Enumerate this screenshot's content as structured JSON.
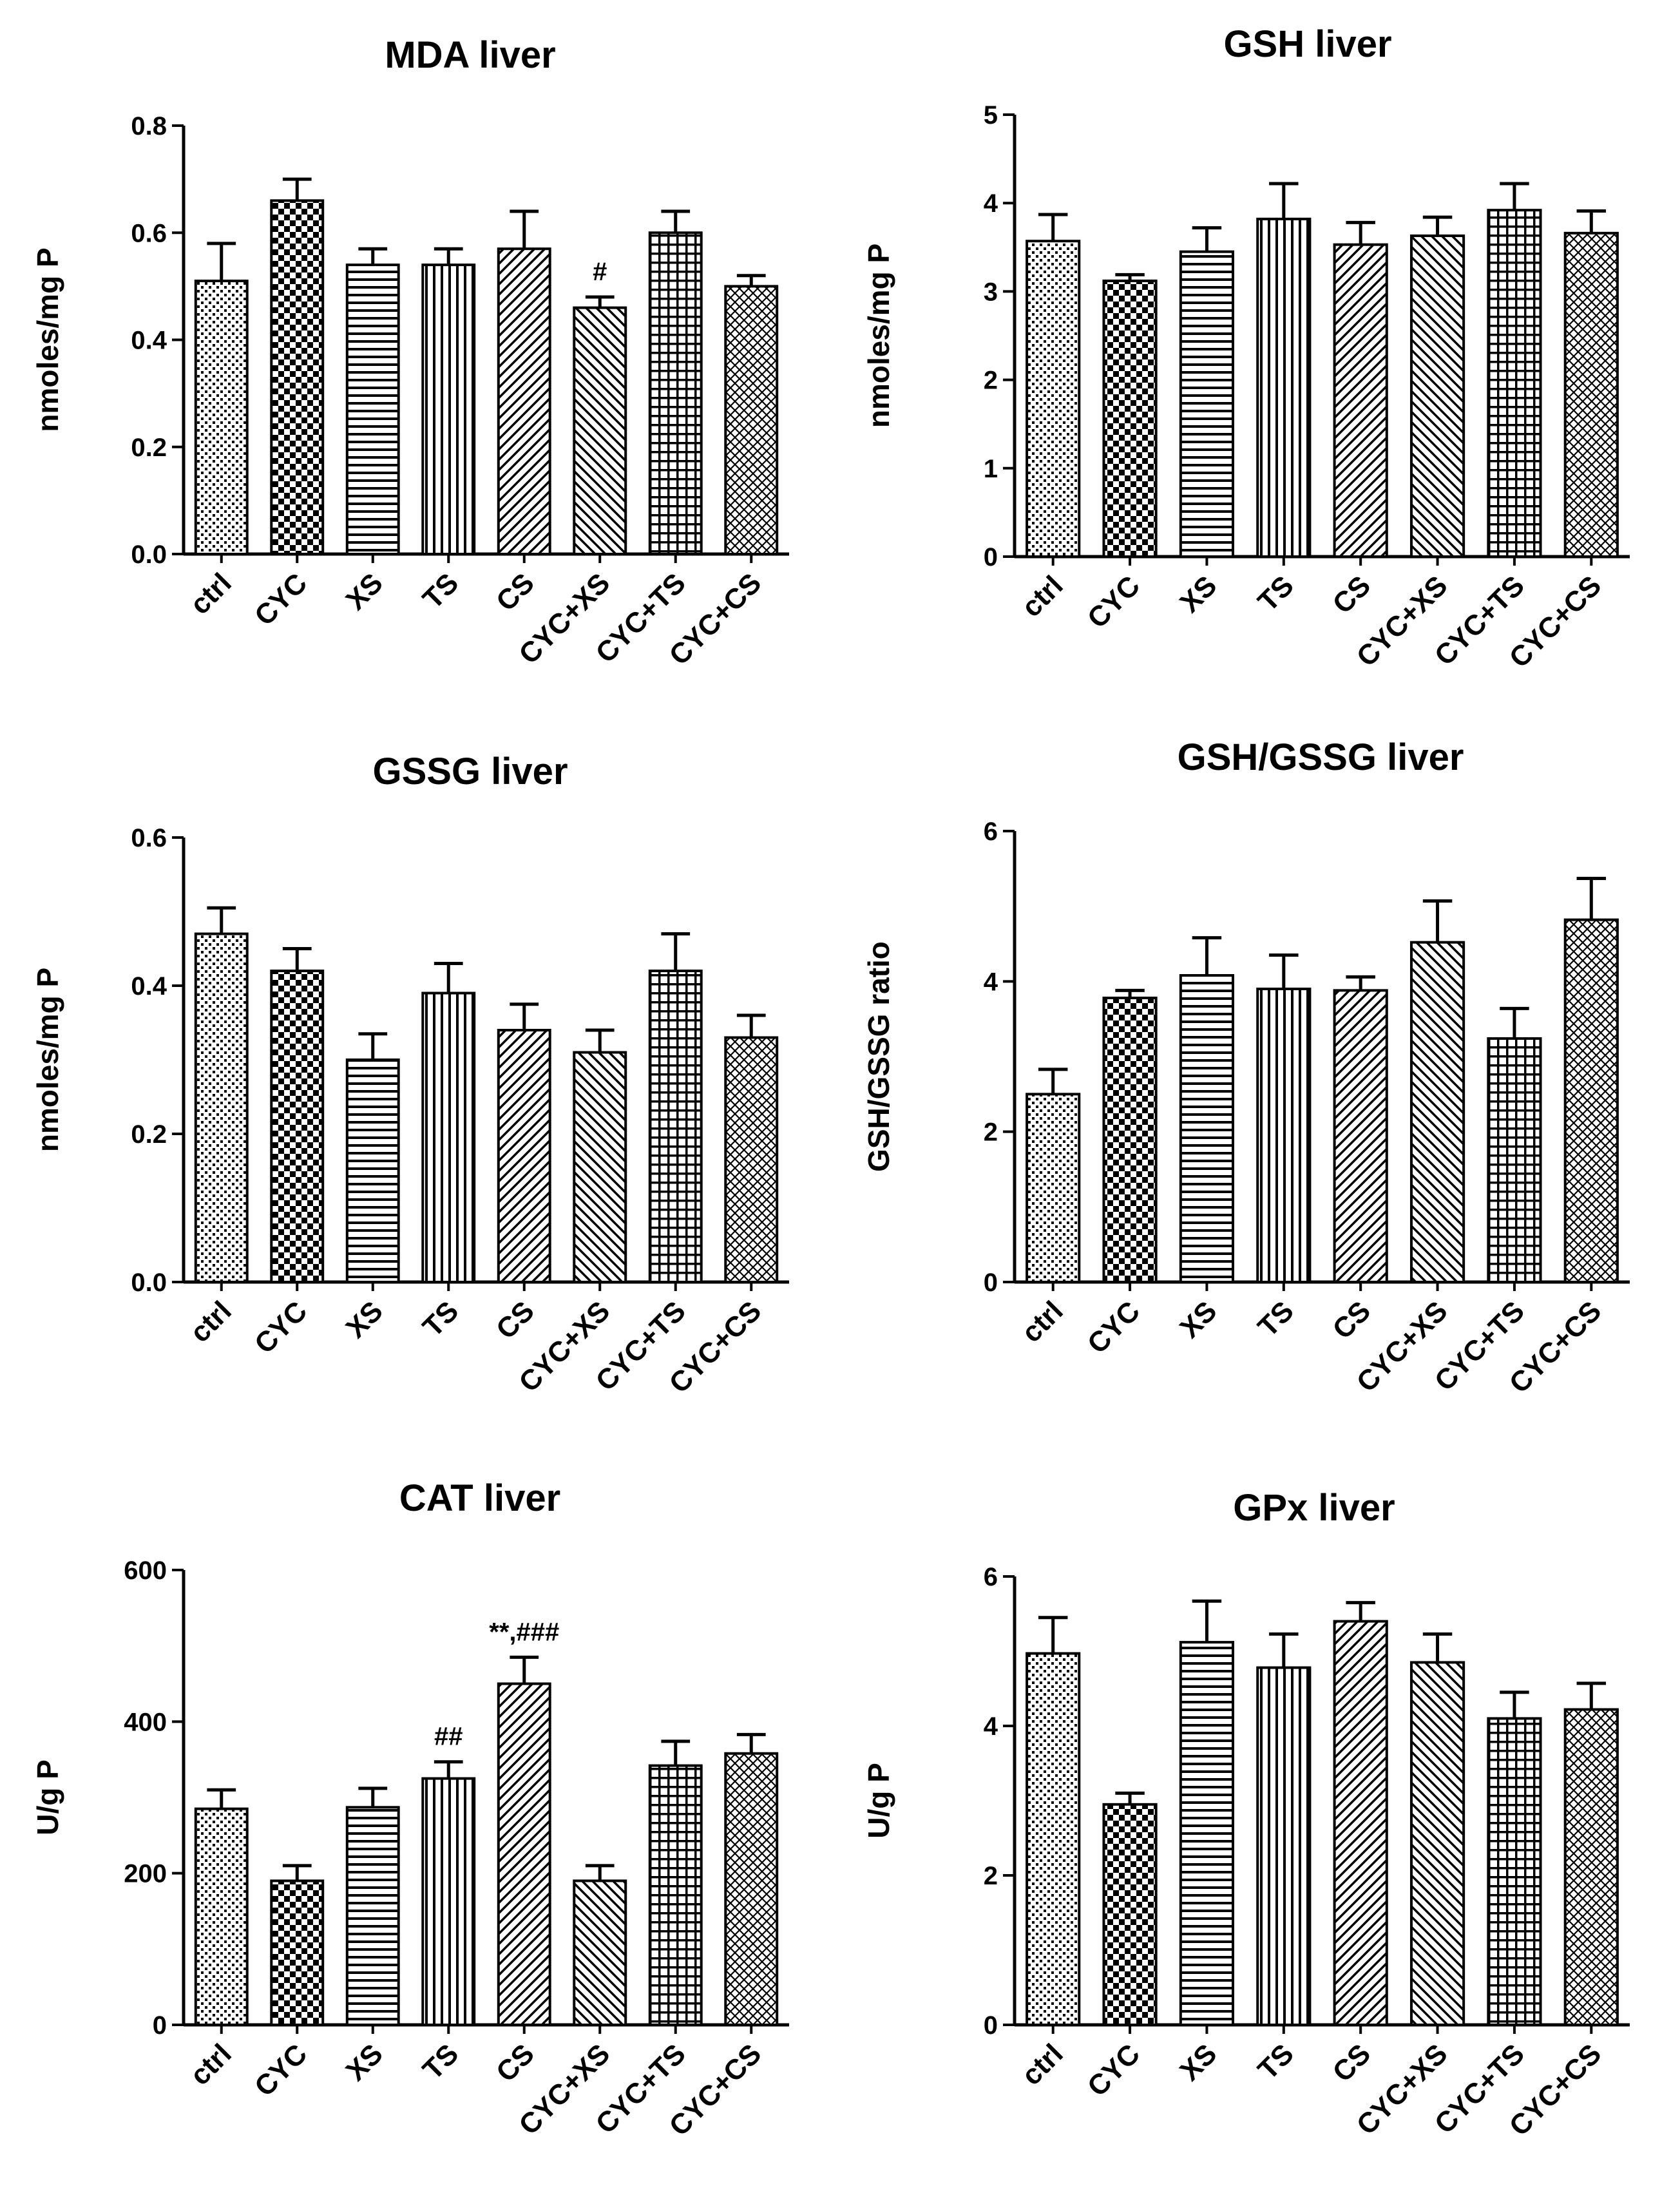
{
  "categories": [
    "ctrl",
    "CYC",
    "XS",
    "TS",
    "CS",
    "CYC+XS",
    "CYC+TS",
    "CYC+CS"
  ],
  "chart_data": [
    {
      "type": "bar",
      "title": "MDA liver",
      "ylabel": "nmoles/mg P",
      "xlabel": "",
      "ylim": [
        0,
        0.8
      ],
      "yticks": [
        "0.0",
        "0.2",
        "0.4",
        "0.6",
        "0.8"
      ],
      "categories": [
        "ctrl",
        "CYC",
        "XS",
        "TS",
        "CS",
        "CYC+XS",
        "CYC+TS",
        "CYC+CS"
      ],
      "values": [
        0.51,
        0.66,
        0.54,
        0.54,
        0.57,
        0.46,
        0.6,
        0.5
      ],
      "errors": [
        0.07,
        0.04,
        0.03,
        0.03,
        0.07,
        0.02,
        0.04,
        0.02
      ],
      "annotations": [
        "",
        "",
        "",
        "",
        "",
        "#",
        "",
        ""
      ]
    },
    {
      "type": "bar",
      "title": "GSH liver",
      "ylabel": "nmoles/mg P",
      "xlabel": "",
      "ylim": [
        0,
        5
      ],
      "yticks": [
        "0",
        "1",
        "2",
        "3",
        "4",
        "5"
      ],
      "categories": [
        "ctrl",
        "CYC",
        "XS",
        "TS",
        "CS",
        "CYC+XS",
        "CYC+TS",
        "CYC+CS"
      ],
      "values": [
        3.57,
        3.12,
        3.45,
        3.82,
        3.53,
        3.63,
        3.92,
        3.66
      ],
      "errors": [
        0.3,
        0.07,
        0.27,
        0.4,
        0.25,
        0.21,
        0.3,
        0.25
      ],
      "annotations": [
        "",
        "",
        "",
        "",
        "",
        "",
        "",
        ""
      ]
    },
    {
      "type": "bar",
      "title": "GSSG liver",
      "ylabel": "nmoles/mg P",
      "xlabel": "",
      "ylim": [
        0,
        0.6
      ],
      "yticks": [
        "0.0",
        "0.2",
        "0.4",
        "0.6"
      ],
      "categories": [
        "ctrl",
        "CYC",
        "XS",
        "TS",
        "CS",
        "CYC+XS",
        "CYC+TS",
        "CYC+CS"
      ],
      "values": [
        0.47,
        0.42,
        0.3,
        0.39,
        0.34,
        0.31,
        0.42,
        0.33
      ],
      "errors": [
        0.035,
        0.03,
        0.035,
        0.04,
        0.035,
        0.03,
        0.05,
        0.03
      ],
      "annotations": [
        "",
        "",
        "",
        "",
        "",
        "",
        "",
        ""
      ]
    },
    {
      "type": "bar",
      "title": "GSH/GSSG liver",
      "ylabel": "GSH/GSSG ratio",
      "xlabel": "",
      "ylim": [
        0,
        6
      ],
      "yticks": [
        "0",
        "2",
        "4",
        "6"
      ],
      "categories": [
        "ctrl",
        "CYC",
        "XS",
        "TS",
        "CS",
        "CYC+XS",
        "CYC+TS",
        "CYC+CS"
      ],
      "values": [
        2.5,
        3.78,
        4.08,
        3.9,
        3.88,
        4.52,
        3.24,
        4.82
      ],
      "errors": [
        0.33,
        0.1,
        0.5,
        0.45,
        0.18,
        0.55,
        0.4,
        0.55
      ],
      "annotations": [
        "",
        "",
        "",
        "",
        "",
        "",
        "",
        ""
      ]
    },
    {
      "type": "bar",
      "title": "CAT liver",
      "ylabel": "U/g P",
      "xlabel": "",
      "ylim": [
        0,
        600
      ],
      "yticks": [
        "0",
        "200",
        "400",
        "600"
      ],
      "categories": [
        "ctrl",
        "CYC",
        "XS",
        "TS",
        "CS",
        "CYC+XS",
        "CYC+TS",
        "CYC+CS"
      ],
      "values": [
        285,
        190,
        287,
        325,
        450,
        190,
        342,
        358
      ],
      "errors": [
        25,
        20,
        25,
        22,
        35,
        20,
        32,
        25
      ],
      "annotations": [
        "",
        "",
        "",
        "##",
        "**,###",
        "",
        "",
        ""
      ]
    },
    {
      "type": "bar",
      "title": "GPx liver",
      "ylabel": "U/g P",
      "xlabel": "",
      "ylim": [
        0,
        6
      ],
      "yticks": [
        "0",
        "2",
        "4",
        "6"
      ],
      "categories": [
        "ctrl",
        "CYC",
        "XS",
        "TS",
        "CS",
        "CYC+XS",
        "CYC+TS",
        "CYC+CS"
      ],
      "values": [
        4.97,
        2.95,
        5.12,
        4.78,
        5.4,
        4.85,
        4.1,
        4.22
      ],
      "errors": [
        0.48,
        0.15,
        0.55,
        0.45,
        0.25,
        0.38,
        0.35,
        0.35
      ],
      "annotations": [
        "",
        "",
        "",
        "",
        "",
        "",
        "",
        ""
      ]
    }
  ]
}
